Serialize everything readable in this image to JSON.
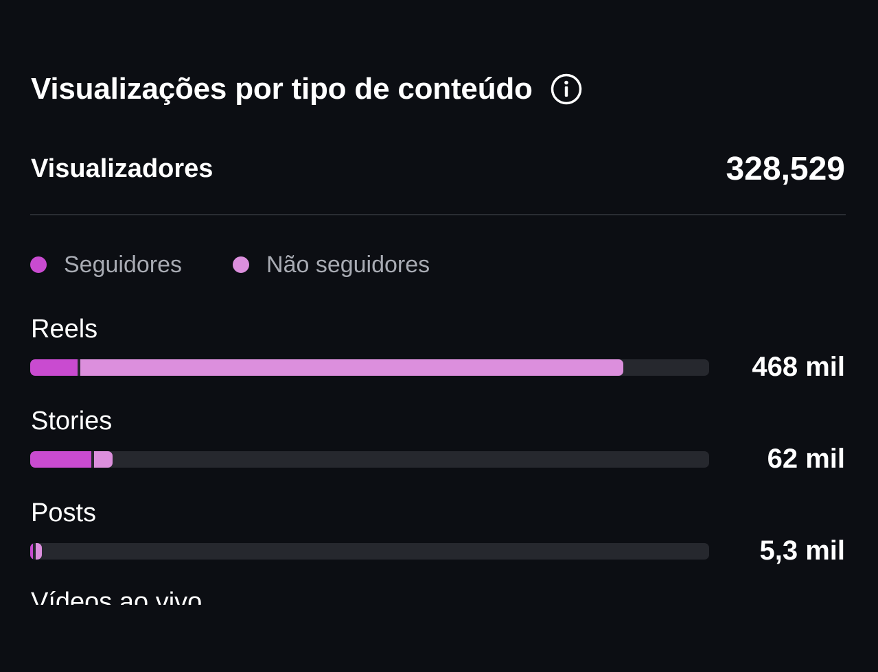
{
  "section": {
    "title": "Visualizações por tipo de conteúdo",
    "info_icon": "info-circle-icon"
  },
  "summary": {
    "label": "Visualizadores",
    "value": "328,529"
  },
  "legend": [
    {
      "label": "Seguidores",
      "color": "#c94bd0"
    },
    {
      "label": "Não seguidores",
      "color": "#dc8fdd"
    }
  ],
  "colors": {
    "background": "#0c0e13",
    "track": "#26282e",
    "followers": "#c94bd0",
    "non_followers": "#dc8fdd"
  },
  "content_types": [
    {
      "label": "Reels",
      "value": "468 mil",
      "followers_fraction": 0.07,
      "non_followers_fraction": 0.8
    },
    {
      "label": "Stories",
      "value": "62 mil",
      "followers_fraction": 0.09,
      "non_followers_fraction": 0.027
    },
    {
      "label": "Posts",
      "value": "5,3 mil",
      "followers_fraction": 0.0035,
      "non_followers_fraction": 0.0095
    }
  ],
  "partial_row": {
    "label": "Vídeos ao vivo"
  }
}
